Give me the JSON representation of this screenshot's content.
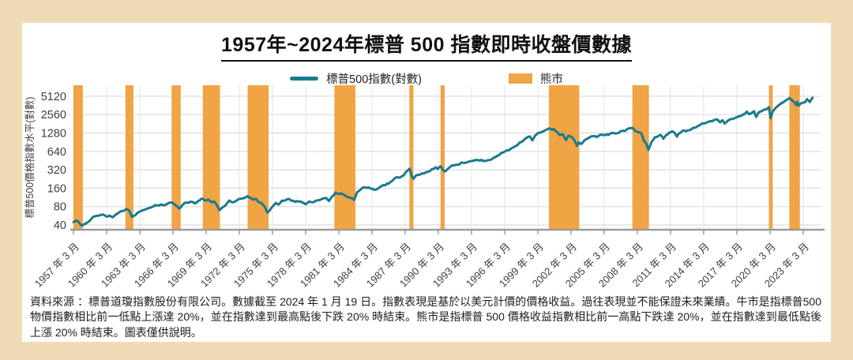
{
  "title": "1957年~2024年標普 500 指數即時收盤價數據",
  "footnote": "資料來源 ：標普道瓊指數股份有限公司。數據截至 2024 年 1 月 19 日。指數表現是基於以美元計價的價格收益。過往表現並不能保證未來業績。牛市是指標普500物價指數相比前一低點上漲達 20%，並在指數達到最高點後下跌 20% 時結束。熊市是指標普 500 價格收益指數相比前一高點下跌達 20%，並在指數達到最低點後上漲 20% 時結束。圖表僅供說明。",
  "chart_data": {
    "type": "line",
    "title": "1957年~2024年標普 500 指數即時收盤價數據",
    "ylabel": "標普500價格指數水平(對數)",
    "y_scale": "log2",
    "y_ticks": [
      5120,
      2560,
      1280,
      640,
      320,
      160,
      80,
      40
    ],
    "x_range": [
      1957.2,
      2024.85
    ],
    "x_ticks": [
      {
        "year": 1957.2,
        "label": "1957 年 3 月"
      },
      {
        "year": 1960.2,
        "label": "1960 年 3 月"
      },
      {
        "year": 1963.2,
        "label": "1963 年 3 月"
      },
      {
        "year": 1966.2,
        "label": "1966 年 3 月"
      },
      {
        "year": 1969.2,
        "label": "1969 年 3 月"
      },
      {
        "year": 1972.2,
        "label": "1972 年 3 月"
      },
      {
        "year": 1975.2,
        "label": "1975 年 3 月"
      },
      {
        "year": 1978.2,
        "label": "1978 年 3 月"
      },
      {
        "year": 1981.2,
        "label": "1981 年 3 月"
      },
      {
        "year": 1984.2,
        "label": "1984 年 3 月"
      },
      {
        "year": 1987.2,
        "label": "1987 年 3 月"
      },
      {
        "year": 1990.2,
        "label": "1990 年 3 月"
      },
      {
        "year": 1993.2,
        "label": "1993 年 3 月"
      },
      {
        "year": 1996.2,
        "label": "1996 年 3 月"
      },
      {
        "year": 1999.2,
        "label": "1999 年 3 月"
      },
      {
        "year": 2002.2,
        "label": "2002 年 3 月"
      },
      {
        "year": 2005.2,
        "label": "2005 年 3 月"
      },
      {
        "year": 2008.2,
        "label": "2008 年 3 月"
      },
      {
        "year": 2011.2,
        "label": "2011 年 3 月"
      },
      {
        "year": 2014.2,
        "label": "2014 年 3 月"
      },
      {
        "year": 2017.2,
        "label": "2017 年 3 月"
      },
      {
        "year": 2020.2,
        "label": "2020 年 3 月"
      },
      {
        "year": 2023.2,
        "label": "2023 年 3 月"
      }
    ],
    "legend": {
      "series": "標普500指數(對數)",
      "bear": "熊市"
    },
    "colors": {
      "line": "#1b7a8e",
      "bear_band": "#f0a444",
      "grid": "#dcdcdc",
      "vgrid": "#e6e6e6",
      "axis": "#9a9a9a",
      "tick_text": "#3c4043",
      "card_bg": "#ffffff",
      "page_bg": "#f0dcb4"
    },
    "bear_markets": [
      [
        1957.2,
        1958.05
      ],
      [
        1961.9,
        1962.62
      ],
      [
        1966.08,
        1966.9
      ],
      [
        1968.9,
        1970.45
      ],
      [
        1972.95,
        1974.85
      ],
      [
        1980.8,
        1982.7
      ],
      [
        1987.58,
        1987.95
      ],
      [
        1990.4,
        1990.78
      ],
      [
        2000.2,
        2002.95
      ],
      [
        2007.75,
        2009.25
      ],
      [
        2020.1,
        2020.45
      ],
      [
        2021.95,
        2022.9
      ]
    ],
    "series": {
      "name": "標普500指數(對數)",
      "points": [
        [
          1957.2,
          44.7
        ],
        [
          1957.45,
          47.5
        ],
        [
          1957.65,
          45
        ],
        [
          1957.85,
          40.3
        ],
        [
          1958.0,
          39.2
        ],
        [
          1958.3,
          42
        ],
        [
          1958.7,
          47.5
        ],
        [
          1959.0,
          55
        ],
        [
          1959.3,
          56.5
        ],
        [
          1959.6,
          58
        ],
        [
          1959.9,
          59.5
        ],
        [
          1960.2,
          55
        ],
        [
          1960.45,
          57
        ],
        [
          1960.75,
          53.5
        ],
        [
          1961.0,
          59
        ],
        [
          1961.4,
          66
        ],
        [
          1961.7,
          68
        ],
        [
          1961.95,
          72.5
        ],
        [
          1962.2,
          69.5
        ],
        [
          1962.5,
          54.3
        ],
        [
          1962.8,
          58
        ],
        [
          1963.1,
          65
        ],
        [
          1963.5,
          70
        ],
        [
          1963.9,
          74
        ],
        [
          1964.3,
          79
        ],
        [
          1964.7,
          84
        ],
        [
          1965.1,
          87
        ],
        [
          1965.45,
          84.5
        ],
        [
          1965.8,
          91.5
        ],
        [
          1966.1,
          93.8
        ],
        [
          1966.35,
          87
        ],
        [
          1966.75,
          74
        ],
        [
          1967.1,
          87
        ],
        [
          1967.45,
          93
        ],
        [
          1967.8,
          96.5
        ],
        [
          1968.2,
          90
        ],
        [
          1968.5,
          99
        ],
        [
          1968.9,
          107.5
        ],
        [
          1969.15,
          101
        ],
        [
          1969.4,
          104.5
        ],
        [
          1969.65,
          94.5
        ],
        [
          1969.9,
          97.5
        ],
        [
          1970.15,
          86
        ],
        [
          1970.4,
          70
        ],
        [
          1970.65,
          77
        ],
        [
          1970.95,
          84
        ],
        [
          1971.3,
          100.5
        ],
        [
          1971.65,
          94
        ],
        [
          1971.95,
          100
        ],
        [
          1972.3,
          107
        ],
        [
          1972.65,
          110
        ],
        [
          1972.95,
          119
        ],
        [
          1973.2,
          112
        ],
        [
          1973.45,
          104
        ],
        [
          1973.7,
          108
        ],
        [
          1973.95,
          95
        ],
        [
          1974.2,
          92
        ],
        [
          1974.5,
          80
        ],
        [
          1974.75,
          63.5
        ],
        [
          1974.95,
          69
        ],
        [
          1975.2,
          80
        ],
        [
          1975.5,
          92
        ],
        [
          1975.75,
          86.5
        ],
        [
          1976.05,
          100
        ],
        [
          1976.4,
          102.5
        ],
        [
          1976.75,
          105.5
        ],
        [
          1977.1,
          99
        ],
        [
          1977.5,
          97
        ],
        [
          1977.9,
          93
        ],
        [
          1978.2,
          87.5
        ],
        [
          1978.5,
          97
        ],
        [
          1978.8,
          94
        ],
        [
          1979.1,
          99.5
        ],
        [
          1979.45,
          102
        ],
        [
          1979.8,
          109
        ],
        [
          1980.05,
          111
        ],
        [
          1980.3,
          98.5
        ],
        [
          1980.6,
          117
        ],
        [
          1980.9,
          136
        ],
        [
          1981.15,
          129
        ],
        [
          1981.45,
          132
        ],
        [
          1981.75,
          122
        ],
        [
          1982.05,
          114
        ],
        [
          1982.35,
          110.5
        ],
        [
          1982.6,
          103
        ],
        [
          1982.85,
          137
        ],
        [
          1983.1,
          148
        ],
        [
          1983.5,
          166
        ],
        [
          1983.9,
          165
        ],
        [
          1984.2,
          157
        ],
        [
          1984.55,
          151
        ],
        [
          1984.9,
          166
        ],
        [
          1985.3,
          181
        ],
        [
          1985.7,
          190
        ],
        [
          1986.05,
          212
        ],
        [
          1986.3,
          236
        ],
        [
          1986.65,
          238
        ],
        [
          1986.95,
          252
        ],
        [
          1987.25,
          292
        ],
        [
          1987.6,
          335
        ],
        [
          1987.8,
          252
        ],
        [
          1987.95,
          228
        ],
        [
          1988.2,
          260
        ],
        [
          1988.55,
          268
        ],
        [
          1988.9,
          278
        ],
        [
          1989.25,
          296
        ],
        [
          1989.6,
          327
        ],
        [
          1989.95,
          352
        ],
        [
          1990.15,
          332
        ],
        [
          1990.4,
          366
        ],
        [
          1990.6,
          322
        ],
        [
          1990.78,
          300
        ],
        [
          1990.95,
          317
        ],
        [
          1991.15,
          342
        ],
        [
          1991.45,
          378
        ],
        [
          1991.8,
          386
        ],
        [
          1992.2,
          408
        ],
        [
          1992.6,
          415
        ],
        [
          1992.95,
          436
        ],
        [
          1993.3,
          450
        ],
        [
          1993.7,
          460
        ],
        [
          1994.1,
          467
        ],
        [
          1994.45,
          445
        ],
        [
          1994.8,
          461
        ],
        [
          1995.1,
          482
        ],
        [
          1995.5,
          542
        ],
        [
          1995.9,
          605
        ],
        [
          1996.25,
          642
        ],
        [
          1996.6,
          672
        ],
        [
          1996.95,
          742
        ],
        [
          1997.25,
          792
        ],
        [
          1997.55,
          892
        ],
        [
          1997.85,
          945
        ],
        [
          1998.15,
          1060
        ],
        [
          1998.5,
          1120
        ],
        [
          1998.7,
          972
        ],
        [
          1998.95,
          1160
        ],
        [
          1999.25,
          1290
        ],
        [
          1999.55,
          1340
        ],
        [
          1999.85,
          1420
        ],
        [
          2000.2,
          1522
        ],
        [
          2000.45,
          1450
        ],
        [
          2000.65,
          1490
        ],
        [
          2000.95,
          1325
        ],
        [
          2001.2,
          1180
        ],
        [
          2001.45,
          1230
        ],
        [
          2001.73,
          975
        ],
        [
          2001.95,
          1145
        ],
        [
          2002.2,
          1120
        ],
        [
          2002.5,
          990
        ],
        [
          2002.75,
          790
        ],
        [
          2002.9,
          905
        ],
        [
          2003.1,
          845
        ],
        [
          2003.4,
          965
        ],
        [
          2003.8,
          1055
        ],
        [
          2004.2,
          1135
        ],
        [
          2004.55,
          1100
        ],
        [
          2004.95,
          1210
        ],
        [
          2005.3,
          1180
        ],
        [
          2005.7,
          1235
        ],
        [
          2006.05,
          1285
        ],
        [
          2006.4,
          1270
        ],
        [
          2006.8,
          1385
        ],
        [
          2007.2,
          1435
        ],
        [
          2007.5,
          1535
        ],
        [
          2007.75,
          1562
        ],
        [
          2008.0,
          1380
        ],
        [
          2008.25,
          1325
        ],
        [
          2008.55,
          1280
        ],
        [
          2008.8,
          950
        ],
        [
          2009.0,
          870
        ],
        [
          2009.2,
          678
        ],
        [
          2009.5,
          925
        ],
        [
          2009.8,
          1095
        ],
        [
          2010.1,
          1145
        ],
        [
          2010.3,
          1195
        ],
        [
          2010.55,
          1030
        ],
        [
          2010.8,
          1185
        ],
        [
          2011.1,
          1305
        ],
        [
          2011.35,
          1362
        ],
        [
          2011.6,
          1270
        ],
        [
          2011.78,
          1120
        ],
        [
          2011.95,
          1255
        ],
        [
          2012.3,
          1405
        ],
        [
          2012.6,
          1362
        ],
        [
          2012.95,
          1425
        ],
        [
          2013.3,
          1565
        ],
        [
          2013.7,
          1685
        ],
        [
          2014.05,
          1845
        ],
        [
          2014.4,
          1880
        ],
        [
          2014.8,
          2005
        ],
        [
          2015.2,
          2100
        ],
        [
          2015.45,
          2125
        ],
        [
          2015.7,
          1920
        ],
        [
          2015.9,
          2080
        ],
        [
          2016.1,
          1830
        ],
        [
          2016.45,
          2075
        ],
        [
          2016.8,
          2165
        ],
        [
          2017.15,
          2305
        ],
        [
          2017.5,
          2445
        ],
        [
          2017.9,
          2605
        ],
        [
          2018.1,
          2872
        ],
        [
          2018.3,
          2605
        ],
        [
          2018.6,
          2785
        ],
        [
          2018.75,
          2915
        ],
        [
          2018.95,
          2350
        ],
        [
          2019.2,
          2805
        ],
        [
          2019.5,
          2955
        ],
        [
          2019.8,
          3110
        ],
        [
          2020.1,
          3386
        ],
        [
          2020.25,
          2237
        ],
        [
          2020.45,
          2910
        ],
        [
          2020.7,
          3275
        ],
        [
          2020.95,
          3620
        ],
        [
          2021.2,
          3910
        ],
        [
          2021.5,
          4210
        ],
        [
          2021.8,
          4540
        ],
        [
          2021.97,
          4797
        ],
        [
          2022.2,
          4355
        ],
        [
          2022.4,
          4110
        ],
        [
          2022.55,
          3670
        ],
        [
          2022.68,
          4135
        ],
        [
          2022.78,
          3585
        ],
        [
          2022.95,
          3855
        ],
        [
          2023.1,
          4005
        ],
        [
          2023.4,
          4150
        ],
        [
          2023.55,
          4590
        ],
        [
          2023.8,
          4120
        ],
        [
          2023.95,
          4560
        ],
        [
          2024.05,
          4840
        ]
      ]
    }
  }
}
